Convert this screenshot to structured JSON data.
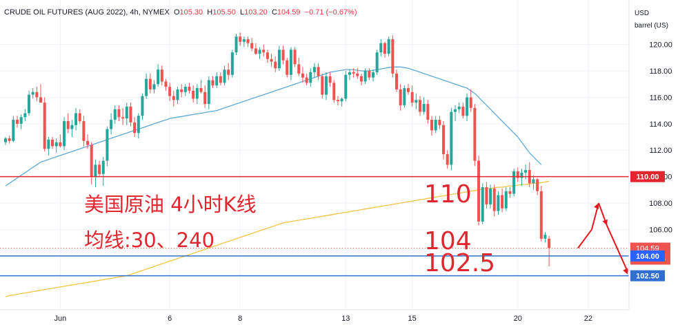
{
  "header": {
    "symbol": "CRUDE OIL FUTURES (AUG 2022), 4h, NYMEX",
    "o_label": "O",
    "o_value": "105.30",
    "h_label": "H",
    "h_value": "105.50",
    "l_label": "L",
    "l_value": "103.20",
    "c_label": "C",
    "c_value": "104.59",
    "change": "−0.71 (−0.67%)"
  },
  "axis_unit": {
    "line1": "USD",
    "line2": "barrel (US)"
  },
  "annotations": {
    "title": "美国原油 4小时K线",
    "ma_note": "均线:30、240",
    "label_110": "110",
    "label_104": "104",
    "label_102_5": "102.5"
  },
  "price_tags": {
    "resistance": "110.00",
    "last_price": "104.59",
    "countdown": "01:32:15",
    "support1": "104.00",
    "support2": "102.50"
  },
  "colors": {
    "up": "#26a69a",
    "down": "#ef5350",
    "ma30": "#5fa9d8",
    "ma240": "#f3c444",
    "resistance_line": "#e0262f",
    "support_line": "#2f6fd1",
    "annotation": "#e0262f",
    "arrow": "#e8141e"
  },
  "chart_data": {
    "type": "candlestick",
    "title": "CRUDE OIL FUTURES (AUG 2022), 4h, NYMEX",
    "ylabel": "USD barrel (US)",
    "ylim": [
      100.8,
      122.2
    ],
    "y_ticks": [
      106,
      108,
      110,
      112,
      114,
      116,
      118,
      120
    ],
    "y_tick_labels": [
      "106.00",
      "108.00",
      "110.00",
      "112.00",
      "114.00",
      "116.00",
      "118.00",
      "120.00"
    ],
    "x_labels": [
      {
        "label": "Jun",
        "index": 14
      },
      {
        "label": "6",
        "index": 42
      },
      {
        "label": "8",
        "index": 60
      },
      {
        "label": "13",
        "index": 87
      },
      {
        "label": "15",
        "index": 104
      },
      {
        "label": "20",
        "index": 131
      },
      {
        "label": "22",
        "index": 149
      }
    ],
    "candles": [
      [
        112.6,
        113.0,
        112.4,
        112.9
      ],
      [
        112.9,
        113.1,
        112.5,
        112.7
      ],
      [
        112.7,
        114.6,
        112.6,
        114.3
      ],
      [
        114.3,
        114.6,
        113.7,
        114.0
      ],
      [
        114.0,
        114.7,
        113.6,
        114.5
      ],
      [
        114.5,
        115.1,
        114.2,
        114.8
      ],
      [
        114.8,
        116.5,
        114.6,
        116.2
      ],
      [
        116.2,
        116.7,
        115.9,
        116.4
      ],
      [
        116.4,
        116.8,
        115.7,
        116.0
      ],
      [
        116.0,
        117.0,
        115.8,
        115.6
      ],
      [
        115.6,
        116.0,
        111.9,
        112.1
      ],
      [
        112.1,
        113.0,
        111.6,
        112.8
      ],
      [
        112.8,
        113.0,
        112.1,
        112.3
      ],
      [
        112.3,
        112.9,
        111.8,
        112.6
      ],
      [
        112.6,
        113.2,
        112.2,
        112.3
      ],
      [
        112.3,
        114.5,
        112.0,
        114.2
      ],
      [
        114.2,
        114.8,
        113.3,
        113.6
      ],
      [
        113.6,
        114.3,
        113.0,
        113.9
      ],
      [
        113.9,
        115.2,
        113.5,
        114.8
      ],
      [
        114.8,
        115.1,
        114.0,
        114.2
      ],
      [
        114.2,
        114.6,
        112.3,
        112.7
      ],
      [
        112.7,
        113.2,
        112.1,
        112.4
      ],
      [
        112.4,
        112.6,
        109.4,
        110.0
      ],
      [
        110.0,
        111.3,
        109.2,
        110.9
      ],
      [
        110.9,
        111.2,
        110.0,
        110.2
      ],
      [
        110.2,
        111.5,
        109.3,
        111.2
      ],
      [
        111.2,
        113.8,
        110.8,
        113.6
      ],
      [
        113.6,
        114.8,
        113.2,
        114.3
      ],
      [
        114.3,
        115.4,
        114.0,
        115.1
      ],
      [
        115.1,
        115.4,
        114.2,
        114.5
      ],
      [
        114.5,
        115.2,
        113.9,
        114.4
      ],
      [
        114.4,
        115.6,
        113.9,
        115.3
      ],
      [
        115.3,
        115.6,
        113.8,
        114.1
      ],
      [
        114.1,
        114.5,
        113.0,
        113.3
      ],
      [
        113.3,
        114.8,
        112.9,
        114.6
      ],
      [
        114.6,
        116.3,
        114.3,
        116.1
      ],
      [
        116.1,
        117.8,
        115.9,
        117.4
      ],
      [
        117.4,
        117.8,
        116.3,
        116.6
      ],
      [
        116.6,
        117.3,
        116.3,
        117.0
      ],
      [
        117.0,
        118.5,
        116.8,
        118.1
      ],
      [
        118.1,
        118.4,
        116.9,
        117.2
      ],
      [
        117.2,
        117.4,
        116.5,
        116.8
      ],
      [
        116.8,
        117.1,
        115.7,
        116.1
      ],
      [
        116.1,
        116.5,
        115.3,
        115.8
      ],
      [
        115.8,
        116.8,
        115.5,
        116.6
      ],
      [
        116.6,
        117.0,
        116.0,
        116.4
      ],
      [
        116.4,
        117.0,
        116.1,
        116.8
      ],
      [
        116.8,
        117.1,
        116.3,
        116.5
      ],
      [
        116.5,
        116.9,
        115.6,
        115.9
      ],
      [
        115.9,
        117.0,
        115.5,
        116.7
      ],
      [
        116.7,
        117.3,
        116.3,
        116.4
      ],
      [
        116.4,
        116.9,
        115.2,
        115.5
      ],
      [
        115.5,
        117.6,
        115.1,
        117.3
      ],
      [
        117.3,
        117.6,
        116.7,
        116.9
      ],
      [
        116.9,
        117.9,
        116.7,
        117.6
      ],
      [
        117.6,
        117.9,
        116.9,
        117.1
      ],
      [
        117.1,
        118.4,
        116.9,
        118.1
      ],
      [
        118.1,
        118.6,
        117.3,
        117.7
      ],
      [
        117.7,
        119.6,
        117.5,
        119.4
      ],
      [
        119.4,
        120.8,
        119.2,
        120.6
      ],
      [
        120.6,
        120.9,
        119.9,
        120.2
      ],
      [
        120.2,
        120.6,
        119.8,
        120.4
      ],
      [
        120.4,
        120.6,
        119.8,
        120.1
      ],
      [
        120.1,
        120.5,
        119.5,
        119.7
      ],
      [
        119.7,
        120.1,
        119.2,
        119.3
      ],
      [
        119.3,
        119.8,
        118.9,
        119.6
      ],
      [
        119.6,
        120.0,
        119.1,
        119.4
      ],
      [
        119.4,
        119.6,
        118.6,
        118.9
      ],
      [
        118.9,
        119.3,
        118.3,
        118.7
      ],
      [
        118.7,
        119.1,
        117.9,
        118.2
      ],
      [
        118.2,
        119.9,
        118.0,
        119.6
      ],
      [
        119.6,
        119.9,
        118.5,
        118.8
      ],
      [
        118.8,
        119.0,
        117.5,
        117.7
      ],
      [
        117.7,
        119.8,
        117.3,
        119.6
      ],
      [
        119.6,
        119.8,
        118.3,
        118.5
      ],
      [
        118.5,
        119.0,
        117.6,
        117.8
      ],
      [
        117.8,
        118.3,
        117.1,
        117.5
      ],
      [
        117.5,
        117.8,
        116.9,
        117.1
      ],
      [
        117.1,
        118.2,
        116.8,
        117.9
      ],
      [
        117.9,
        118.6,
        117.5,
        118.3
      ],
      [
        118.3,
        118.6,
        117.3,
        117.6
      ],
      [
        117.6,
        117.8,
        115.9,
        116.2
      ],
      [
        116.2,
        117.9,
        115.8,
        117.6
      ],
      [
        117.6,
        117.9,
        116.8,
        117.1
      ],
      [
        117.1,
        117.3,
        115.6,
        115.8
      ],
      [
        115.8,
        116.1,
        115.4,
        115.7
      ],
      [
        115.7,
        116.0,
        115.3,
        115.9
      ],
      [
        115.9,
        118.0,
        115.7,
        117.7
      ],
      [
        117.7,
        118.1,
        117.3,
        117.9
      ],
      [
        117.9,
        118.2,
        117.5,
        117.8
      ],
      [
        117.8,
        118.2,
        117.4,
        117.6
      ],
      [
        117.6,
        117.8,
        116.9,
        117.2
      ],
      [
        117.2,
        118.2,
        117.0,
        118.0
      ],
      [
        118.0,
        118.2,
        117.3,
        117.5
      ],
      [
        117.5,
        118.1,
        117.2,
        117.9
      ],
      [
        117.9,
        119.6,
        117.7,
        119.4
      ],
      [
        119.4,
        120.4,
        119.1,
        120.1
      ],
      [
        120.1,
        120.2,
        119.0,
        119.3
      ],
      [
        119.3,
        120.6,
        119.1,
        120.4
      ],
      [
        120.4,
        120.7,
        117.5,
        117.8
      ],
      [
        117.8,
        118.1,
        116.4,
        116.6
      ],
      [
        116.6,
        117.0,
        115.0,
        115.4
      ],
      [
        115.4,
        116.9,
        115.2,
        116.7
      ],
      [
        116.7,
        117.0,
        116.2,
        116.4
      ],
      [
        116.4,
        116.9,
        115.3,
        115.6
      ],
      [
        115.6,
        116.3,
        115.1,
        115.8
      ],
      [
        115.8,
        116.1,
        114.6,
        114.9
      ],
      [
        114.9,
        116.0,
        114.7,
        115.5
      ],
      [
        115.5,
        115.8,
        114.0,
        114.3
      ],
      [
        114.3,
        114.6,
        113.1,
        113.5
      ],
      [
        113.5,
        114.6,
        113.3,
        114.3
      ],
      [
        114.3,
        114.6,
        113.6,
        113.9
      ],
      [
        113.9,
        114.2,
        111.3,
        111.7
      ],
      [
        111.7,
        112.0,
        110.6,
        110.9
      ],
      [
        110.9,
        115.2,
        110.5,
        114.9
      ],
      [
        114.9,
        115.4,
        114.2,
        115.1
      ],
      [
        115.1,
        115.6,
        114.8,
        115.3
      ],
      [
        115.3,
        115.6,
        114.4,
        114.6
      ],
      [
        114.6,
        116.3,
        114.2,
        116.0
      ],
      [
        116.0,
        116.6,
        114.9,
        115.2
      ],
      [
        115.2,
        115.5,
        110.8,
        111.2
      ],
      [
        111.2,
        111.6,
        106.3,
        106.6
      ],
      [
        106.6,
        109.5,
        106.4,
        109.2
      ],
      [
        109.2,
        109.6,
        107.6,
        107.9
      ],
      [
        107.9,
        109.4,
        107.6,
        109.1
      ],
      [
        109.1,
        109.4,
        107.0,
        107.4
      ],
      [
        107.4,
        108.9,
        107.1,
        108.6
      ],
      [
        108.6,
        109.1,
        107.3,
        107.6
      ],
      [
        107.6,
        109.2,
        107.4,
        108.9
      ],
      [
        108.9,
        109.2,
        108.4,
        108.7
      ],
      [
        108.7,
        110.6,
        108.5,
        110.4
      ],
      [
        110.4,
        110.7,
        109.6,
        109.9
      ],
      [
        109.9,
        110.6,
        109.3,
        110.3
      ],
      [
        110.3,
        110.9,
        109.8,
        110.5
      ],
      [
        110.5,
        111.1,
        109.2,
        109.5
      ],
      [
        109.5,
        110.1,
        109.0,
        109.8
      ],
      [
        109.8,
        109.9,
        108.6,
        108.9
      ],
      [
        108.9,
        109.3,
        105.1,
        105.3
      ],
      [
        105.3,
        105.8,
        105.0,
        105.6
      ],
      [
        105.3,
        105.5,
        103.2,
        104.59
      ]
    ],
    "ma30": [
      109.3,
      109.5,
      109.7,
      109.9,
      110.1,
      110.3,
      110.5,
      110.7,
      110.9,
      111.1,
      111.2,
      111.3,
      111.4,
      111.5,
      111.6,
      111.7,
      111.8,
      111.9,
      112.0,
      112.1,
      112.2,
      112.3,
      112.4,
      112.5,
      112.6,
      112.7,
      112.8,
      112.9,
      113.0,
      113.1,
      113.2,
      113.3,
      113.4,
      113.5,
      113.6,
      113.7,
      113.8,
      113.9,
      114.0,
      114.1,
      114.2,
      114.3,
      114.4,
      114.45,
      114.5,
      114.55,
      114.6,
      114.65,
      114.7,
      114.75,
      114.8,
      114.85,
      114.9,
      114.95,
      115.0,
      115.1,
      115.2,
      115.3,
      115.4,
      115.5,
      115.6,
      115.7,
      115.8,
      115.9,
      116.0,
      116.1,
      116.2,
      116.3,
      116.4,
      116.5,
      116.6,
      116.7,
      116.8,
      116.9,
      117.0,
      117.1,
      117.2,
      117.3,
      117.4,
      117.5,
      117.6,
      117.7,
      117.8,
      117.9,
      117.95,
      118.0,
      118.05,
      118.1,
      118.1,
      118.1,
      118.05,
      118.0,
      118.0,
      118.0,
      118.05,
      118.1,
      118.15,
      118.2,
      118.25,
      118.3,
      118.3,
      118.3,
      118.25,
      118.2,
      118.1,
      118.0,
      117.9,
      117.8,
      117.7,
      117.6,
      117.5,
      117.4,
      117.3,
      117.2,
      117.1,
      117.0,
      116.9,
      116.8,
      116.7,
      116.5,
      116.3,
      116.0,
      115.7,
      115.4,
      115.1,
      114.8,
      114.5,
      114.2,
      113.9,
      113.6,
      113.3,
      113.0,
      112.6,
      112.2,
      111.8,
      111.5,
      111.2,
      110.9
    ],
    "ma240": [
      100.9,
      101.0,
      101.05,
      101.1,
      101.15,
      101.2,
      101.25,
      101.3,
      101.35,
      101.4,
      101.45,
      101.5,
      101.55,
      101.6,
      101.65,
      101.7,
      101.75,
      101.8,
      101.85,
      101.9,
      101.95,
      102.0,
      102.05,
      102.1,
      102.15,
      102.2,
      102.25,
      102.3,
      102.35,
      102.4,
      102.45,
      102.5,
      102.6,
      102.7,
      102.8,
      102.9,
      103.0,
      103.1,
      103.2,
      103.3,
      103.4,
      103.5,
      103.6,
      103.7,
      103.8,
      103.9,
      104.0,
      104.1,
      104.2,
      104.3,
      104.4,
      104.5,
      104.6,
      104.7,
      104.8,
      104.9,
      105.0,
      105.1,
      105.2,
      105.3,
      105.4,
      105.5,
      105.6,
      105.7,
      105.8,
      105.9,
      106.0,
      106.1,
      106.2,
      106.3,
      106.4,
      106.5,
      106.55,
      106.6,
      106.65,
      106.7,
      106.75,
      106.8,
      106.85,
      106.9,
      106.95,
      107.0,
      107.05,
      107.1,
      107.15,
      107.2,
      107.25,
      107.3,
      107.35,
      107.4,
      107.45,
      107.5,
      107.55,
      107.6,
      107.65,
      107.7,
      107.75,
      107.8,
      107.85,
      107.9,
      107.95,
      108.0,
      108.05,
      108.1,
      108.15,
      108.2,
      108.25,
      108.3,
      108.35,
      108.4,
      108.45,
      108.5,
      108.55,
      108.6,
      108.65,
      108.7,
      108.75,
      108.8,
      108.85,
      108.9,
      108.95,
      109.0,
      109.05,
      109.1,
      109.1,
      109.15,
      109.2,
      109.2,
      109.25,
      109.3,
      109.3,
      109.35,
      109.4,
      109.4,
      109.45,
      109.5,
      109.5,
      109.55,
      109.6,
      109.65
    ],
    "horizontal_lines": [
      110.0,
      104.0,
      102.5
    ],
    "projection_path": [
      104.59,
      106.0,
      108.0,
      106.3,
      102.5
    ]
  }
}
